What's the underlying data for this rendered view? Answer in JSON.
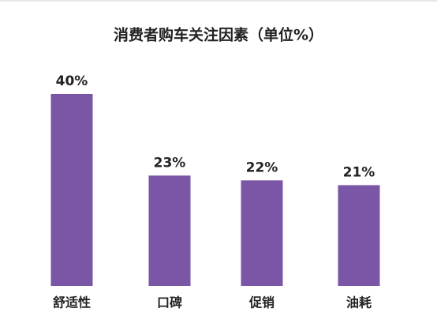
{
  "chart_data": {
    "type": "bar",
    "title": "消费者购车关注因素（单位%）",
    "categories": [
      "舒适性",
      "口碑",
      "促销",
      "油耗"
    ],
    "values": [
      40,
      23,
      22,
      21
    ],
    "value_labels": [
      "40%",
      "23%",
      "22%",
      "21%"
    ],
    "color": "#7b55a6"
  }
}
